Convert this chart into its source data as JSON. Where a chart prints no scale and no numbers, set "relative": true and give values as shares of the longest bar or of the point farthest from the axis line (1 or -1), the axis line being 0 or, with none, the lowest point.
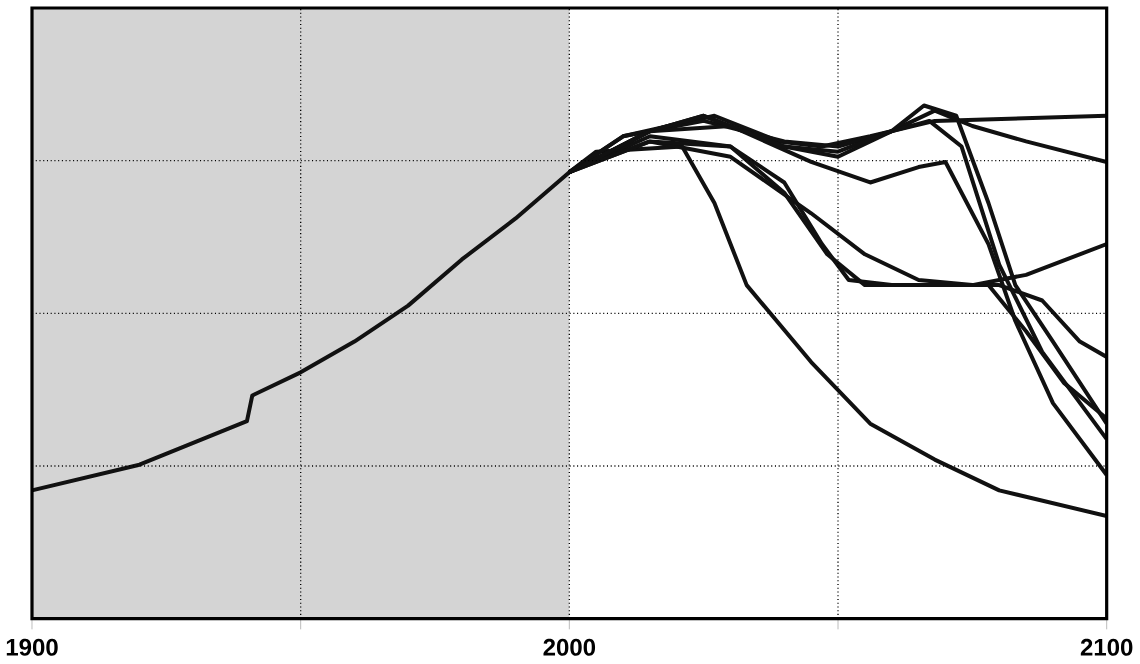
{
  "chart_data": {
    "type": "line",
    "relative": true,
    "grid": true,
    "xlim": [
      1900,
      2100
    ],
    "xticks": [
      1900,
      {
        "value": 1950,
        "label": null
      },
      2000,
      {
        "value": 2050,
        "label": null
      },
      2100
    ],
    "bands": [
      {
        "axis": "x",
        "from": 1900,
        "to": 2000,
        "color": "#d4d4d4"
      }
    ],
    "series": [
      {
        "color": "#111111",
        "x": [
          1900,
          1920,
          1940,
          1941,
          1950,
          1960,
          1970,
          1980,
          1990,
          2000,
          2005,
          2021,
          2027,
          2033,
          2045,
          2056,
          2068,
          2080,
          2100
        ],
        "values": [
          0.25,
          0.3,
          0.385,
          0.435,
          0.48,
          0.54,
          0.61,
          0.7,
          0.78,
          0.87,
          0.91,
          0.92,
          0.81,
          0.65,
          0.5,
          0.38,
          0.31,
          0.25,
          0.2
        ]
      },
      {
        "color": "#111111",
        "x": [
          2000,
          2010,
          2027,
          2039,
          2047,
          2056,
          2068,
          2100
        ],
        "values": [
          0.87,
          0.94,
          0.98,
          0.93,
          0.92,
          0.94,
          0.97,
          0.98
        ]
      },
      {
        "color": "#111111",
        "x": [
          2000,
          2010,
          2025,
          2040,
          2050,
          2060,
          2068,
          2075,
          2085,
          2100
        ],
        "values": [
          0.87,
          0.94,
          0.97,
          0.93,
          0.92,
          0.95,
          0.99,
          0.96,
          0.93,
          0.89
        ]
      },
      {
        "color": "#111111",
        "x": [
          2000,
          2015,
          2025,
          2040,
          2050,
          2060,
          2066,
          2072,
          2078,
          2083,
          2090,
          2100
        ],
        "values": [
          0.87,
          0.95,
          0.98,
          0.92,
          0.9,
          0.95,
          1.0,
          0.98,
          0.81,
          0.65,
          0.54,
          0.38
        ]
      },
      {
        "color": "#111111",
        "x": [
          2000,
          2015,
          2030,
          2045,
          2056,
          2065,
          2070,
          2078,
          2083,
          2090,
          2100
        ],
        "values": [
          0.87,
          0.95,
          0.96,
          0.89,
          0.85,
          0.88,
          0.89,
          0.73,
          0.58,
          0.42,
          0.28
        ]
      },
      {
        "color": "#111111",
        "x": [
          2000,
          2015,
          2030,
          2040,
          2047,
          2052,
          2060,
          2070,
          2080,
          2088,
          2095,
          2100
        ],
        "values": [
          0.87,
          0.94,
          0.92,
          0.85,
          0.73,
          0.66,
          0.65,
          0.65,
          0.65,
          0.62,
          0.54,
          0.51
        ]
      },
      {
        "color": "#111111",
        "x": [
          2000,
          2015,
          2030,
          2045,
          2055,
          2065,
          2075,
          2085,
          2100
        ],
        "values": [
          0.87,
          0.93,
          0.9,
          0.79,
          0.71,
          0.66,
          0.65,
          0.67,
          0.73
        ]
      },
      {
        "color": "#111111",
        "x": [
          2000,
          2015,
          2030,
          2040,
          2048,
          2055,
          2068,
          2078,
          2085,
          2092,
          2100
        ],
        "values": [
          0.87,
          0.93,
          0.92,
          0.83,
          0.71,
          0.65,
          0.65,
          0.65,
          0.56,
          0.46,
          0.39
        ]
      },
      {
        "color": "#111111",
        "x": [
          2000,
          2015,
          2025,
          2040,
          2050,
          2060,
          2067,
          2073,
          2080,
          2088,
          2100
        ],
        "values": [
          0.87,
          0.95,
          0.98,
          0.92,
          0.91,
          0.95,
          0.97,
          0.92,
          0.69,
          0.52,
          0.35
        ]
      }
    ]
  }
}
